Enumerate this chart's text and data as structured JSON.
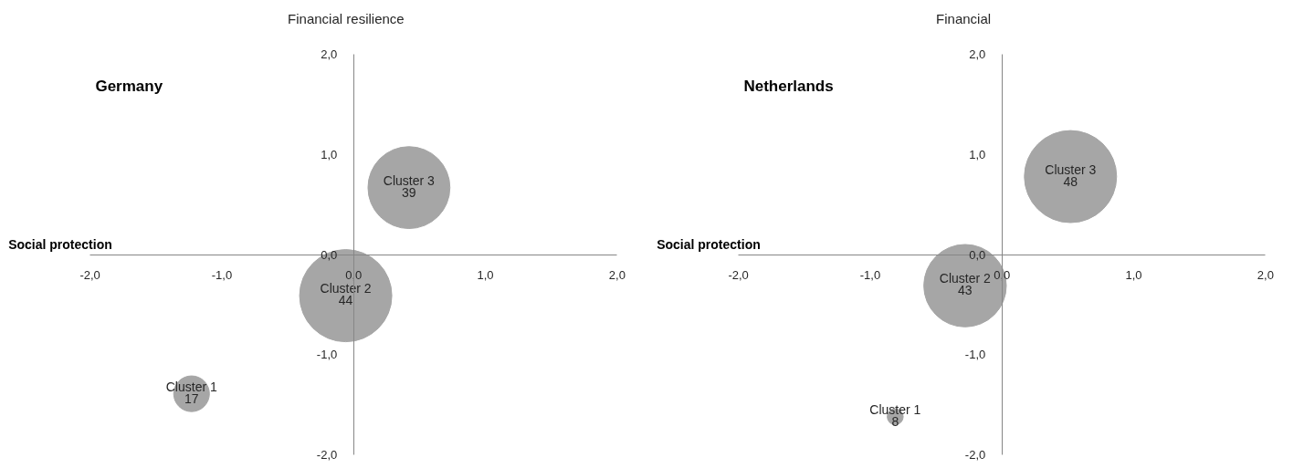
{
  "chart_data": [
    {
      "type": "bubble",
      "title": "Germany",
      "xlabel": "Social protection",
      "ylabel": "Financial resilience",
      "xlim": [
        -2,
        2
      ],
      "ylim": [
        -2,
        2
      ],
      "xticks": [
        {
          "value": -2,
          "label": "-2,0"
        },
        {
          "value": -1,
          "label": "-1,0"
        },
        {
          "value": 0,
          "label": "0,0"
        },
        {
          "value": 1,
          "label": "1,0"
        },
        {
          "value": 2,
          "label": "2,0"
        }
      ],
      "yticks": [
        {
          "value": -2,
          "label": "-2,0"
        },
        {
          "value": -1,
          "label": "-1,0"
        },
        {
          "value": 0,
          "label": "0,0"
        },
        {
          "value": 1,
          "label": "1,0"
        },
        {
          "value": 2,
          "label": "2,0"
        }
      ],
      "grid": false,
      "series": [
        {
          "name": "Cluster 1",
          "color": "#a6a6a6",
          "x": [
            -1.23
          ],
          "values": [
            -1.39
          ],
          "sizes": [
            0.15
          ]
        },
        {
          "name": "Cluster 2",
          "color": "#a6a6a6",
          "x": [
            -0.06
          ],
          "values": [
            -0.41
          ],
          "sizes": [
            1
          ]
        },
        {
          "name": "Cluster 3",
          "color": "#a6a6a6",
          "x": [
            0.42
          ],
          "values": [
            0.67
          ],
          "sizes": [
            0.79
          ]
        }
      ],
      "annotations": [
        {
          "text": "17",
          "x": -1.23,
          "y": -1.39
        },
        {
          "text": "44",
          "x": -0.06,
          "y": -0.41
        },
        {
          "text": "39",
          "x": 0.42,
          "y": 0.67
        }
      ]
    },
    {
      "type": "bubble",
      "title": "Netherlands",
      "xlabel": "Social protection",
      "ylabel": "Financial",
      "xlim": [
        -2,
        2
      ],
      "ylim": [
        -2,
        2
      ],
      "xticks": [
        {
          "value": -2,
          "label": "-2,0"
        },
        {
          "value": -1,
          "label": "-1,0"
        },
        {
          "value": 0,
          "label": "0,0"
        },
        {
          "value": 1,
          "label": "1,0"
        },
        {
          "value": 2,
          "label": "2,0"
        }
      ],
      "yticks": [
        {
          "value": -2,
          "label": "-2,0"
        },
        {
          "value": -1,
          "label": "-1,0"
        },
        {
          "value": 0,
          "label": "0,0"
        },
        {
          "value": 1,
          "label": "1,0"
        },
        {
          "value": 2,
          "label": "2,0"
        }
      ],
      "grid": false,
      "series": [
        {
          "name": "Cluster 1",
          "color": "#a6a6a6",
          "x": [
            -0.81
          ],
          "values": [
            -1.62
          ],
          "sizes": [
            0.03
          ]
        },
        {
          "name": "Cluster 2",
          "color": "#a6a6a6",
          "x": [
            -0.28
          ],
          "values": [
            -0.31
          ],
          "sizes": [
            0.8
          ]
        },
        {
          "name": "Cluster 3",
          "color": "#a6a6a6",
          "x": [
            0.52
          ],
          "values": [
            0.78
          ],
          "sizes": [
            1
          ]
        }
      ],
      "annotations": [
        {
          "text": "8",
          "x": -0.81,
          "y": -1.62
        },
        {
          "text": "43",
          "x": -0.28,
          "y": -0.31
        },
        {
          "text": "48",
          "x": 0.52,
          "y": 0.78
        }
      ]
    }
  ]
}
